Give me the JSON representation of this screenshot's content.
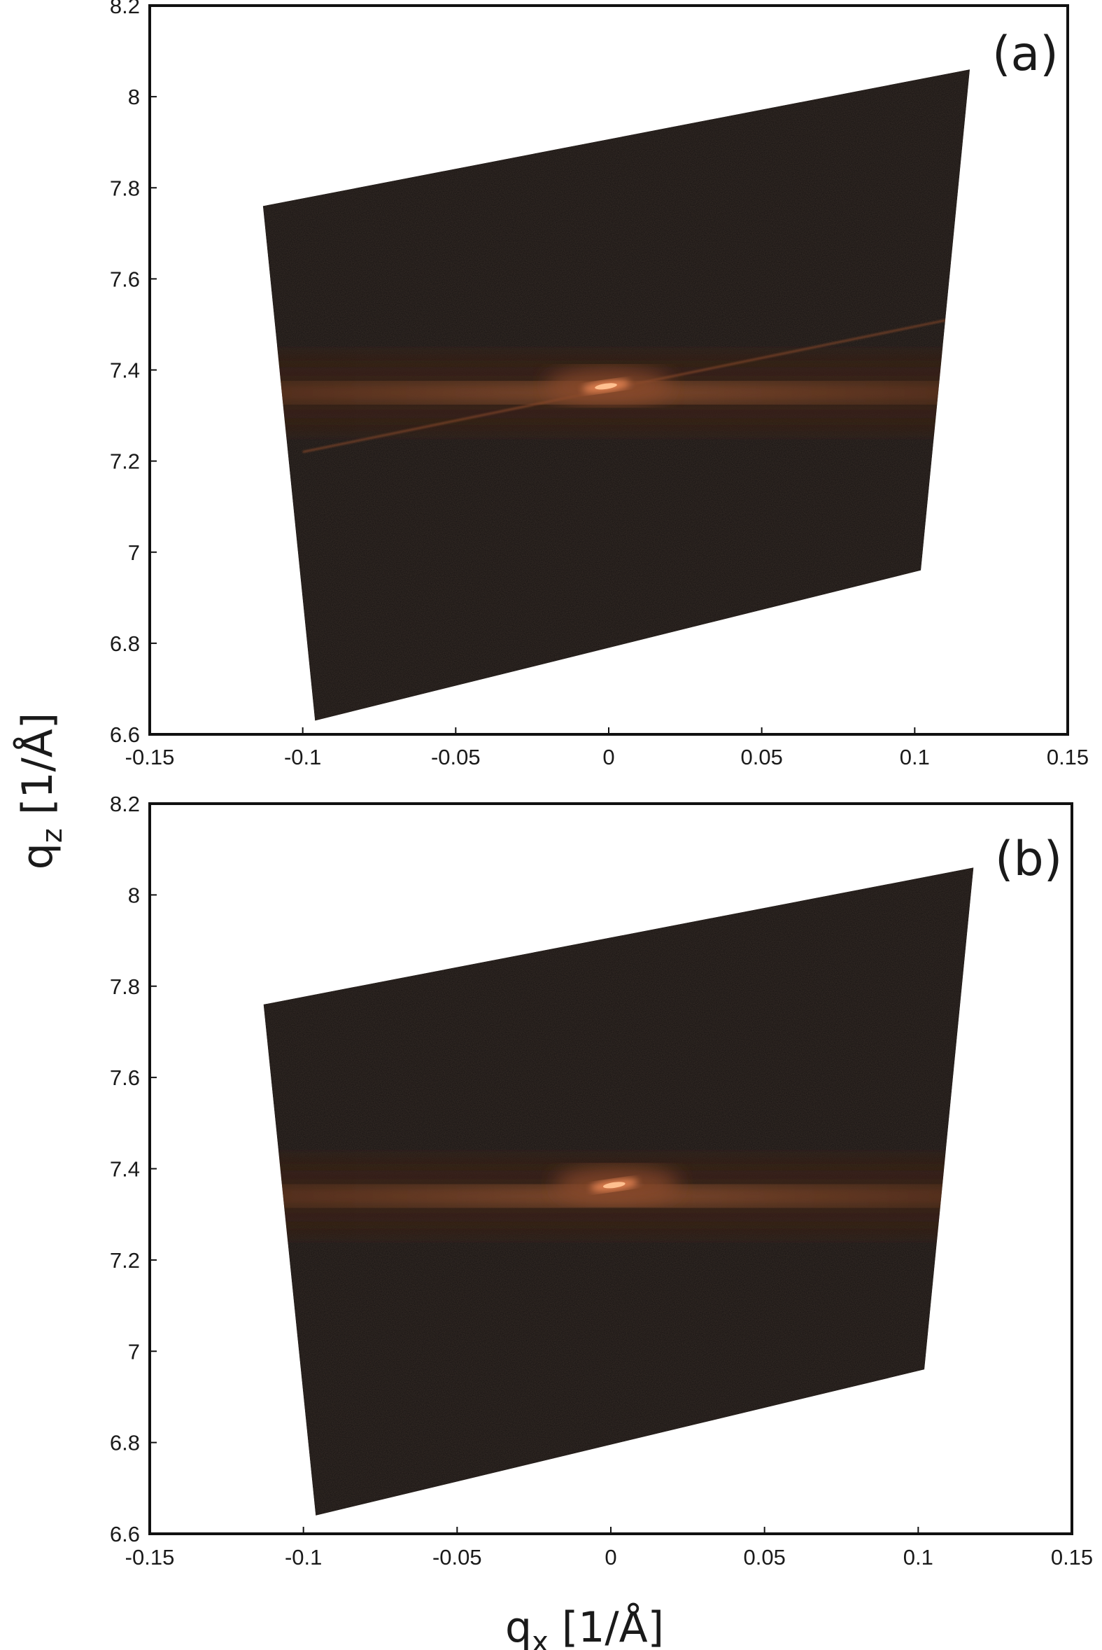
{
  "chart_data": [
    {
      "type": "heatmap",
      "panel_label": "(a)",
      "xlim": [
        -0.15,
        0.15
      ],
      "ylim": [
        6.6,
        8.2
      ],
      "x_ticks": [
        "-0.15",
        "-0.1",
        "-0.05",
        "0",
        "0.05",
        "0.1",
        "0.15"
      ],
      "x_tick_values": [
        -0.15,
        -0.1,
        -0.05,
        0,
        0.05,
        0.1,
        0.15
      ],
      "y_ticks": [
        "6.6",
        "6.8",
        "7",
        "7.2",
        "7.4",
        "7.6",
        "7.8",
        "8",
        "8.2"
      ],
      "y_tick_values": [
        6.6,
        6.8,
        7.0,
        7.2,
        7.4,
        7.6,
        7.8,
        8.0,
        8.2
      ],
      "data_region_corners": [
        [
          -0.113,
          7.76
        ],
        [
          0.118,
          8.06
        ],
        [
          0.102,
          6.96
        ],
        [
          -0.096,
          6.63
        ]
      ],
      "peak": {
        "qx": 0.0,
        "qz": 7.365
      },
      "diffuse_band_qz": 7.35,
      "streak": {
        "from": [
          -0.1,
          7.22
        ],
        "to": [
          0.118,
          7.52
        ]
      },
      "colormap": [
        "#141010",
        "#3a2418",
        "#8a4a2a",
        "#e08050",
        "#ffc090"
      ]
    },
    {
      "type": "heatmap",
      "panel_label": "(b)",
      "xlim": [
        -0.15,
        0.15
      ],
      "ylim": [
        6.6,
        8.2
      ],
      "x_ticks": [
        "-0.15",
        "-0.1",
        "-0.05",
        "0",
        "0.05",
        "0.1",
        "0.15"
      ],
      "x_tick_values": [
        -0.15,
        -0.1,
        -0.05,
        0,
        0.05,
        0.1,
        0.15
      ],
      "y_ticks": [
        "6.6",
        "6.8",
        "7",
        "7.2",
        "7.4",
        "7.6",
        "7.8",
        "8",
        "8.2"
      ],
      "y_tick_values": [
        6.6,
        6.8,
        7.0,
        7.2,
        7.4,
        7.6,
        7.8,
        8.0,
        8.2
      ],
      "data_region_corners": [
        [
          -0.113,
          7.76
        ],
        [
          0.118,
          8.06
        ],
        [
          0.102,
          6.96
        ],
        [
          -0.096,
          6.64
        ]
      ],
      "peak": {
        "qx": 0.002,
        "qz": 7.365
      },
      "diffuse_band_qz": 7.34,
      "streak": null,
      "colormap": [
        "#141010",
        "#3a2418",
        "#8a4a2a",
        "#e08050",
        "#ffc090"
      ]
    }
  ],
  "xlabel": {
    "base": "q",
    "sub": "x",
    "unit": " [1/Å]"
  },
  "ylabel": {
    "base": "q",
    "sub": "z",
    "unit": " [1/Å]"
  }
}
